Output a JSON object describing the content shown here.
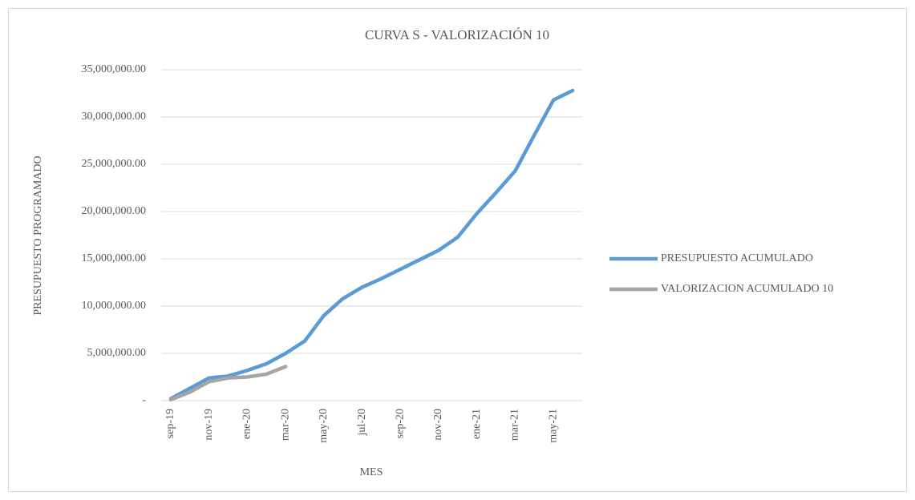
{
  "chart_data": {
    "type": "line",
    "title": "CURVA S - VALORIZACIÓN 10",
    "x_label": "MES",
    "y_label": "PRESUPUESTO PROGRAMADO",
    "categories": [
      "sep-19",
      null,
      "nov-19",
      null,
      "ene-20",
      null,
      "mar-20",
      null,
      "may-20",
      null,
      "jul-20",
      null,
      "sep-20",
      null,
      "nov-20",
      null,
      "ene-21",
      null,
      "mar-21",
      null,
      "may-21",
      null
    ],
    "series": [
      {
        "name": "PRESUPUESTO ACUMULADO",
        "color": "#5b9bd5",
        "values": [
          200000,
          1300000,
          2400000,
          2600000,
          3200000,
          3900000,
          5000000,
          6300000,
          9000000,
          10800000,
          12000000,
          12900000,
          13900000,
          14900000,
          15900000,
          17300000,
          19800000,
          22000000,
          24300000,
          28100000,
          31800000,
          32800000
        ]
      },
      {
        "name": "VALORIZACION ACUMULADO 10",
        "color": "#a5a5a5",
        "values": [
          100000,
          900000,
          2000000,
          2400000,
          2500000,
          2800000,
          3600000,
          null,
          null,
          null,
          null,
          null,
          null,
          null,
          null,
          null,
          null,
          null,
          null,
          null,
          null,
          null
        ]
      }
    ],
    "ylim": [
      0,
      35000000
    ],
    "yticks": [
      {
        "value": 0,
        "label": "-"
      },
      {
        "value": 5000000,
        "label": "5,000,000.00"
      },
      {
        "value": 10000000,
        "label": "10,000,000.00"
      },
      {
        "value": 15000000,
        "label": "15,000,000.00"
      },
      {
        "value": 20000000,
        "label": "20,000,000.00"
      },
      {
        "value": 25000000,
        "label": "25,000,000.00"
      },
      {
        "value": 30000000,
        "label": "30,000,000.00"
      },
      {
        "value": 35000000,
        "label": "35,000,000.00"
      }
    ],
    "grid": true,
    "legend": "right"
  }
}
